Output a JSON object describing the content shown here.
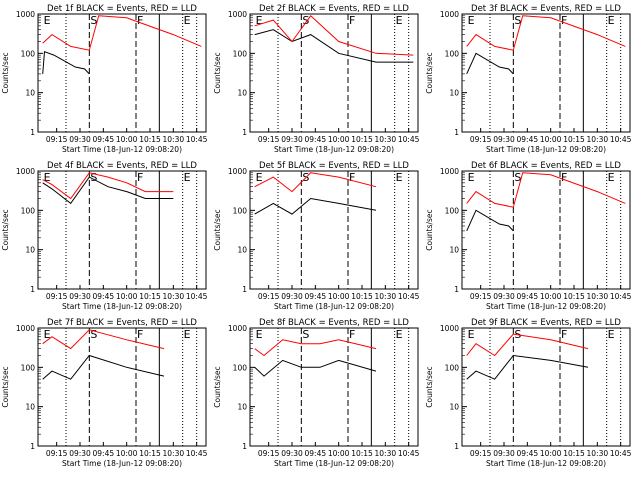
{
  "figure": {
    "width": 640,
    "height": 480,
    "colors": {
      "events": "#000000",
      "lld": "#ff0000",
      "frame": "#000000",
      "background": "#ffffff"
    }
  },
  "chart_data": [
    {
      "type": "line",
      "title": "Det 1f BLACK = Events, RED = LLD",
      "xlabel": "Start Time (18-Jun-12 09:08:20)",
      "ylabel": "Counts/sec",
      "yscale": "log",
      "ylim": [
        1,
        1000
      ],
      "x_tick_labels": [
        "09:15",
        "09:30",
        "09:45",
        "10:00",
        "10:15",
        "10:30",
        "10:45"
      ],
      "y_tick_labels": [
        "1",
        "10",
        "100",
        "1000"
      ],
      "markers": [
        "E",
        "S",
        "F",
        "E"
      ],
      "series": [
        {
          "color": "#000000",
          "values": [
            [
              9.1,
              30
            ],
            [
              9.12,
              110
            ],
            [
              9.22,
              90
            ],
            [
              9.45,
              45
            ],
            [
              9.55,
              40
            ],
            [
              9.6,
              30
            ]
          ]
        },
        {
          "color": "#ff0000",
          "values": [
            [
              9.1,
              180
            ],
            [
              9.2,
              300
            ],
            [
              9.4,
              150
            ],
            [
              9.6,
              120
            ],
            [
              9.7,
              900
            ],
            [
              10.0,
              800
            ],
            [
              10.5,
              300
            ],
            [
              10.8,
              150
            ]
          ]
        }
      ]
    },
    {
      "type": "line",
      "title": "Det 2f BLACK = Events, RED = LLD",
      "xlabel": "Start Time (18-Jun-12 09:08:20)",
      "ylabel": "Counts/sec",
      "yscale": "log",
      "ylim": [
        1,
        1000
      ],
      "x_tick_labels": [
        "09:15",
        "09:30",
        "09:45",
        "10:00",
        "10:15",
        "10:30",
        "10:45"
      ],
      "y_tick_labels": [
        "1",
        "10",
        "100",
        "1000"
      ],
      "markers": [
        "E",
        "S",
        "F",
        "E"
      ],
      "series": [
        {
          "color": "#000000",
          "values": [
            [
              9.1,
              300
            ],
            [
              9.3,
              400
            ],
            [
              9.5,
              200
            ],
            [
              9.7,
              300
            ],
            [
              10.0,
              100
            ],
            [
              10.4,
              60
            ],
            [
              10.8,
              60
            ]
          ]
        },
        {
          "color": "#ff0000",
          "values": [
            [
              9.1,
              500
            ],
            [
              9.3,
              700
            ],
            [
              9.5,
              200
            ],
            [
              9.7,
              900
            ],
            [
              10.0,
              200
            ],
            [
              10.4,
              100
            ],
            [
              10.8,
              90
            ]
          ]
        }
      ]
    },
    {
      "type": "line",
      "title": "Det 3f BLACK = Events, RED = LLD",
      "xlabel": "Start Time (18-Jun-12 09:08:20)",
      "ylabel": "Counts/sec",
      "yscale": "log",
      "ylim": [
        1,
        1000
      ],
      "x_tick_labels": [
        "09:15",
        "09:30",
        "09:45",
        "10:00",
        "10:15",
        "10:30",
        "10:45"
      ],
      "y_tick_labels": [
        "1",
        "10",
        "100",
        "1000"
      ],
      "markers": [
        "E",
        "S",
        "F",
        "E"
      ],
      "series": [
        {
          "color": "#000000",
          "values": [
            [
              9.1,
              30
            ],
            [
              9.2,
              100
            ],
            [
              9.45,
              45
            ],
            [
              9.55,
              40
            ],
            [
              9.6,
              30
            ]
          ]
        },
        {
          "color": "#ff0000",
          "values": [
            [
              9.1,
              150
            ],
            [
              9.2,
              300
            ],
            [
              9.4,
              150
            ],
            [
              9.6,
              120
            ],
            [
              9.7,
              900
            ],
            [
              10.0,
              800
            ],
            [
              10.5,
              300
            ],
            [
              10.8,
              150
            ]
          ]
        }
      ]
    },
    {
      "type": "line",
      "title": "Det 4f BLACK = Events, RED = LLD",
      "xlabel": "Start Time (18-Jun-12 09:08:20)",
      "ylabel": "Counts/sec",
      "yscale": "log",
      "ylim": [
        1,
        1000
      ],
      "x_tick_labels": [
        "09:15",
        "09:30",
        "09:45",
        "10:00",
        "10:15",
        "10:30",
        "10:45"
      ],
      "y_tick_labels": [
        "1",
        "10",
        "100",
        "1000"
      ],
      "markers": [
        "E",
        "S",
        "F",
        "E"
      ],
      "series": [
        {
          "color": "#000000",
          "values": [
            [
              9.1,
              500
            ],
            [
              9.2,
              350
            ],
            [
              9.4,
              150
            ],
            [
              9.6,
              700
            ],
            [
              9.8,
              400
            ],
            [
              10.0,
              300
            ],
            [
              10.2,
              200
            ],
            [
              10.5,
              200
            ]
          ]
        },
        {
          "color": "#ff0000",
          "values": [
            [
              9.1,
              600
            ],
            [
              9.2,
              450
            ],
            [
              9.4,
              200
            ],
            [
              9.6,
              900
            ],
            [
              9.8,
              700
            ],
            [
              10.0,
              500
            ],
            [
              10.2,
              300
            ],
            [
              10.5,
              300
            ]
          ]
        }
      ]
    },
    {
      "type": "line",
      "title": "Det 5f BLACK = Events, RED = LLD",
      "xlabel": "Start Time (18-Jun-12 09:08:20)",
      "ylabel": "Counts/sec",
      "yscale": "log",
      "ylim": [
        1,
        1000
      ],
      "x_tick_labels": [
        "09:15",
        "09:30",
        "09:45",
        "10:00",
        "10:15",
        "10:30",
        "10:45"
      ],
      "y_tick_labels": [
        "1",
        "10",
        "100",
        "1000"
      ],
      "markers": [
        "E",
        "S",
        "F",
        "E"
      ],
      "series": [
        {
          "color": "#000000",
          "values": [
            [
              9.1,
              80
            ],
            [
              9.3,
              150
            ],
            [
              9.5,
              80
            ],
            [
              9.7,
              200
            ],
            [
              10.0,
              150
            ],
            [
              10.4,
              100
            ]
          ]
        },
        {
          "color": "#ff0000",
          "values": [
            [
              9.1,
              400
            ],
            [
              9.3,
              700
            ],
            [
              9.5,
              300
            ],
            [
              9.7,
              900
            ],
            [
              10.0,
              700
            ],
            [
              10.4,
              400
            ]
          ]
        }
      ]
    },
    {
      "type": "line",
      "title": "Det 6f BLACK = Events, RED = LLD",
      "xlabel": "Start Time (18-Jun-12 09:08:20)",
      "ylabel": "Counts/sec",
      "yscale": "log",
      "ylim": [
        1,
        1000
      ],
      "x_tick_labels": [
        "09:15",
        "09:30",
        "09:45",
        "10:00",
        "10:15",
        "10:30",
        "10:45"
      ],
      "y_tick_labels": [
        "1",
        "10",
        "100",
        "1000"
      ],
      "markers": [
        "E",
        "S",
        "F",
        "E"
      ],
      "series": [
        {
          "color": "#000000",
          "values": [
            [
              9.1,
              30
            ],
            [
              9.2,
              100
            ],
            [
              9.45,
              45
            ],
            [
              9.55,
              40
            ],
            [
              9.6,
              30
            ]
          ]
        },
        {
          "color": "#ff0000",
          "values": [
            [
              9.1,
              150
            ],
            [
              9.2,
              300
            ],
            [
              9.4,
              150
            ],
            [
              9.6,
              120
            ],
            [
              9.7,
              900
            ],
            [
              10.0,
              800
            ],
            [
              10.5,
              300
            ],
            [
              10.8,
              150
            ]
          ]
        }
      ]
    },
    {
      "type": "line",
      "title": "Det 7f BLACK = Events, RED = LLD",
      "xlabel": "Start Time (18-Jun-12 09:08:20)",
      "ylabel": "Counts/sec",
      "yscale": "log",
      "ylim": [
        1,
        1000
      ],
      "x_tick_labels": [
        "09:15",
        "09:30",
        "09:45",
        "10:00",
        "10:15",
        "10:30",
        "10:45"
      ],
      "y_tick_labels": [
        "1",
        "10",
        "100",
        "1000"
      ],
      "markers": [
        "E",
        "S",
        "F",
        "E"
      ],
      "series": [
        {
          "color": "#000000",
          "values": [
            [
              9.1,
              50
            ],
            [
              9.2,
              80
            ],
            [
              9.4,
              50
            ],
            [
              9.6,
              200
            ],
            [
              10.0,
              100
            ],
            [
              10.4,
              60
            ]
          ]
        },
        {
          "color": "#ff0000",
          "values": [
            [
              9.1,
              400
            ],
            [
              9.2,
              600
            ],
            [
              9.4,
              300
            ],
            [
              9.6,
              900
            ],
            [
              10.0,
              500
            ],
            [
              10.4,
              300
            ]
          ]
        }
      ]
    },
    {
      "type": "line",
      "title": "Det 8f BLACK = Events, RED = LLD",
      "xlabel": "Start Time (18-Jun-12 09:08:20)",
      "ylabel": "Counts/sec",
      "yscale": "log",
      "ylim": [
        1,
        1000
      ],
      "x_tick_labels": [
        "09:15",
        "09:30",
        "09:45",
        "10:00",
        "10:15",
        "10:30",
        "10:45"
      ],
      "y_tick_labels": [
        "1",
        "10",
        "100",
        "1000"
      ],
      "markers": [
        "E",
        "S",
        "F",
        "E"
      ],
      "series": [
        {
          "color": "#000000",
          "values": [
            [
              9.1,
              100
            ],
            [
              9.2,
              60
            ],
            [
              9.4,
              150
            ],
            [
              9.6,
              100
            ],
            [
              9.8,
              100
            ],
            [
              10.0,
              150
            ],
            [
              10.4,
              80
            ]
          ]
        },
        {
          "color": "#ff0000",
          "values": [
            [
              9.1,
              300
            ],
            [
              9.2,
              200
            ],
            [
              9.4,
              500
            ],
            [
              9.6,
              400
            ],
            [
              9.8,
              400
            ],
            [
              10.0,
              500
            ],
            [
              10.4,
              300
            ]
          ]
        }
      ]
    },
    {
      "type": "line",
      "title": "Det 9f BLACK = Events, RED = LLD",
      "xlabel": "Start Time (18-Jun-12 09:08:20)",
      "ylabel": "Counts/sec",
      "yscale": "log",
      "ylim": [
        1,
        1000
      ],
      "x_tick_labels": [
        "09:15",
        "09:30",
        "09:45",
        "10:00",
        "10:15",
        "10:30",
        "10:45"
      ],
      "y_tick_labels": [
        "1",
        "10",
        "100",
        "1000"
      ],
      "markers": [
        "E",
        "S",
        "F",
        "E"
      ],
      "series": [
        {
          "color": "#000000",
          "values": [
            [
              9.1,
              50
            ],
            [
              9.2,
              80
            ],
            [
              9.4,
              50
            ],
            [
              9.6,
              200
            ],
            [
              10.0,
              150
            ],
            [
              10.4,
              100
            ]
          ]
        },
        {
          "color": "#ff0000",
          "values": [
            [
              9.1,
              200
            ],
            [
              9.2,
              400
            ],
            [
              9.4,
              200
            ],
            [
              9.6,
              700
            ],
            [
              10.0,
              500
            ],
            [
              10.4,
              300
            ]
          ]
        }
      ]
    }
  ]
}
